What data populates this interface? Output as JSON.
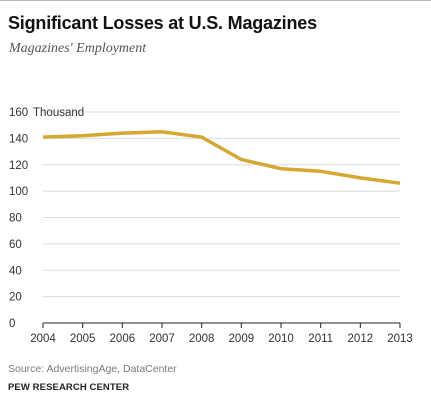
{
  "header": {
    "title": "Significant Losses at U.S. Magazines",
    "subtitle": "Magazines' Employment"
  },
  "footer": {
    "source": "Source: AdvertisingAge, DataCenter",
    "organization": "PEW RESEARCH CENTER"
  },
  "chart_data": {
    "type": "line",
    "title": "Significant Losses at U.S. Magazines",
    "subtitle": "Magazines' Employment",
    "unit_label": "Thousand",
    "x": [
      2004,
      2005,
      2006,
      2007,
      2008,
      2009,
      2010,
      2011,
      2012,
      2013
    ],
    "series": [
      {
        "values": [
          141,
          142,
          144,
          145,
          141,
          124,
          117,
          115,
          110,
          106
        ]
      }
    ],
    "ylim": [
      0,
      160
    ],
    "yticks": [
      0,
      20,
      40,
      60,
      80,
      100,
      120,
      140,
      160
    ],
    "grid": true,
    "line_color": "#d4a831",
    "grid_color": "#dcdcdc",
    "axis_color": "#222222"
  }
}
